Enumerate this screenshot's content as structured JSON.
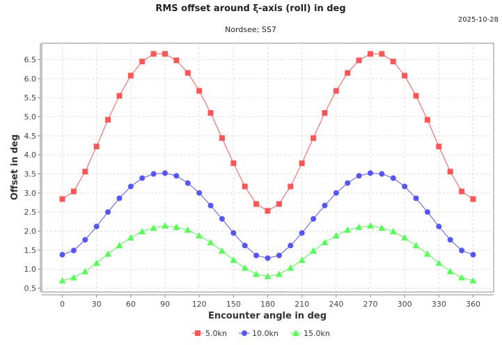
{
  "chart_data": {
    "type": "line",
    "title": "RMS offset around ξ-axis (roll) in deg",
    "subtitle": "Nordsee; SS7",
    "date": "2025-10-28",
    "xlabel": "Encounter angle in deg",
    "ylabel": "Offset in deg",
    "xlim": [
      -18,
      378
    ],
    "ylim": [
      0.4,
      6.93
    ],
    "xticks": [
      0,
      30,
      60,
      90,
      120,
      150,
      180,
      210,
      240,
      270,
      300,
      330,
      360
    ],
    "yticks": [
      0.5,
      1.0,
      1.5,
      2.0,
      2.5,
      3.0,
      3.5,
      4.0,
      4.5,
      5.0,
      5.5,
      6.0,
      6.5
    ],
    "grid": true,
    "legend_position": "bottom",
    "x": [
      0,
      10,
      20,
      30,
      40,
      50,
      60,
      70,
      80,
      90,
      100,
      110,
      120,
      130,
      140,
      150,
      160,
      170,
      180,
      190,
      200,
      210,
      220,
      230,
      240,
      250,
      260,
      270,
      280,
      290,
      300,
      310,
      320,
      330,
      340,
      350,
      360
    ],
    "series": [
      {
        "name": "5.0kn",
        "color": "#ff5555",
        "marker": "square",
        "values": [
          2.84,
          3.04,
          3.56,
          4.22,
          4.92,
          5.55,
          6.08,
          6.45,
          6.65,
          6.65,
          6.48,
          6.15,
          5.68,
          5.1,
          4.44,
          3.78,
          3.17,
          2.71,
          2.53,
          2.71,
          3.17,
          3.78,
          4.44,
          5.1,
          5.68,
          6.15,
          6.48,
          6.65,
          6.65,
          6.45,
          6.08,
          5.55,
          4.92,
          4.22,
          3.56,
          3.04,
          2.84
        ]
      },
      {
        "name": "10.0kn",
        "color": "#5555ff",
        "marker": "circle",
        "values": [
          1.38,
          1.49,
          1.77,
          2.12,
          2.5,
          2.86,
          3.17,
          3.39,
          3.5,
          3.52,
          3.45,
          3.26,
          3.0,
          2.67,
          2.32,
          1.95,
          1.62,
          1.36,
          1.29,
          1.36,
          1.62,
          1.95,
          2.32,
          2.67,
          3.0,
          3.26,
          3.45,
          3.52,
          3.5,
          3.39,
          3.17,
          2.86,
          2.5,
          2.12,
          1.77,
          1.49,
          1.38
        ]
      },
      {
        "name": "15.0kn",
        "color": "#55ff55",
        "marker": "triangle",
        "values": [
          0.7,
          0.78,
          0.94,
          1.16,
          1.4,
          1.62,
          1.83,
          1.99,
          2.08,
          2.14,
          2.1,
          2.03,
          1.88,
          1.7,
          1.48,
          1.24,
          1.03,
          0.87,
          0.81,
          0.87,
          1.03,
          1.24,
          1.48,
          1.7,
          1.88,
          2.03,
          2.1,
          2.14,
          2.08,
          1.99,
          1.83,
          1.62,
          1.4,
          1.16,
          0.94,
          0.78,
          0.7
        ]
      }
    ]
  }
}
